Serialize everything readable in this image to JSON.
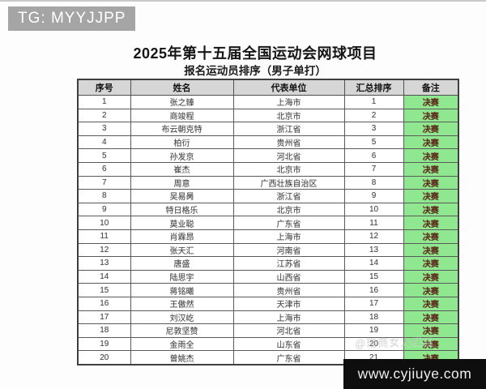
{
  "badge": {
    "text": "TG: MYYJJPP"
  },
  "header": {
    "title": "2025年第十五届全国运动会网球项目",
    "subtitle": "报名运动员排序（男子单打）"
  },
  "table": {
    "headers": [
      "序号",
      "姓名",
      "代表单位",
      "汇总排序",
      "备注"
    ],
    "rows": [
      [
        1,
        "张之臻",
        "上海市",
        1,
        "决赛"
      ],
      [
        2,
        "商竣程",
        "北京市",
        2,
        "决赛"
      ],
      [
        3,
        "布云朝克特",
        "浙江省",
        3,
        "决赛"
      ],
      [
        4,
        "柏衍",
        "贵州省",
        5,
        "决赛"
      ],
      [
        5,
        "孙发京",
        "河北省",
        6,
        "决赛"
      ],
      [
        6,
        "崔杰",
        "北京市",
        7,
        "决赛"
      ],
      [
        7,
        "周意",
        "广西壮族自治区",
        8,
        "决赛"
      ],
      [
        8,
        "吴易昺",
        "浙江省",
        9,
        "决赛"
      ],
      [
        9,
        "特日格乐",
        "北京市",
        10,
        "决赛"
      ],
      [
        10,
        "莫业聪",
        "广东省",
        11,
        "决赛"
      ],
      [
        11,
        "肖霖昂",
        "上海市",
        12,
        "决赛"
      ],
      [
        12,
        "张天汇",
        "河南省",
        13,
        "决赛"
      ],
      [
        13,
        "唐盛",
        "江苏省",
        14,
        "决赛"
      ],
      [
        14,
        "陆思宇",
        "山西省",
        15,
        "决赛"
      ],
      [
        15,
        "蒋铭曦",
        "贵州省",
        16,
        "决赛"
      ],
      [
        16,
        "王傲然",
        "天津市",
        17,
        "决赛"
      ],
      [
        17,
        "刘汉屹",
        "上海市",
        18,
        "决赛"
      ],
      [
        18,
        "尼敦坚赞",
        "河北省",
        19,
        "决赛"
      ],
      [
        19,
        "金雨全",
        "山东省",
        20,
        "决赛"
      ],
      [
        20,
        "曾姚杰",
        "广东省",
        21,
        "决赛"
      ]
    ]
  },
  "watermark": "@瑶商女人红尘",
  "url_bar": "www.cyjiuye.com",
  "colors": {
    "highlight_green": "#8fe88f",
    "header_gray": "#d6d6d6",
    "badge_gray": "#a5a5a5",
    "remark_text": "#5e2a1c",
    "url_bar_bg": "#0e0e0e"
  }
}
